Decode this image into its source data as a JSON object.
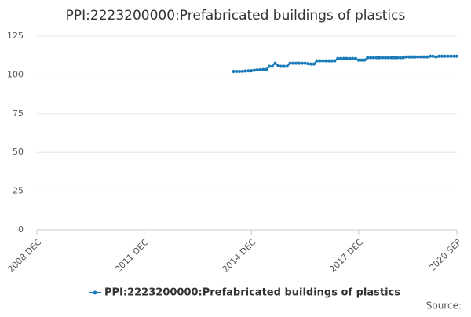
{
  "chart_data": {
    "type": "line",
    "title": "PPI:2223200000:Prefabricated buildings of plastics",
    "x": [
      "2014 JUN",
      "2014 JUL",
      "2014 AUG",
      "2014 SEP",
      "2014 OCT",
      "2014 NOV",
      "2014 DEC",
      "2015 JAN",
      "2015 FEB",
      "2015 MAR",
      "2015 APR",
      "2015 MAY",
      "2015 JUN",
      "2015 JUL",
      "2015 AUG",
      "2015 SEP",
      "2015 OCT",
      "2015 NOV",
      "2015 DEC",
      "2016 JAN",
      "2016 FEB",
      "2016 MAR",
      "2016 APR",
      "2016 MAY",
      "2016 JUN",
      "2016 JUL",
      "2016 AUG",
      "2016 SEP",
      "2016 OCT",
      "2016 NOV",
      "2016 DEC",
      "2017 JAN",
      "2017 FEB",
      "2017 MAR",
      "2017 APR",
      "2017 MAY",
      "2017 JUN",
      "2017 JUL",
      "2017 AUG",
      "2017 SEP",
      "2017 OCT",
      "2017 NOV",
      "2017 DEC",
      "2018 JAN",
      "2018 FEB",
      "2018 MAR",
      "2018 APR",
      "2018 MAY",
      "2018 JUN",
      "2018 JUL",
      "2018 AUG",
      "2018 SEP",
      "2018 OCT",
      "2018 NOV",
      "2018 DEC",
      "2019 JAN",
      "2019 FEB",
      "2019 MAR",
      "2019 APR",
      "2019 MAY",
      "2019 JUN",
      "2019 JUL",
      "2019 AUG",
      "2019 SEP",
      "2019 OCT",
      "2019 NOV",
      "2019 DEC",
      "2020 JAN",
      "2020 FEB",
      "2020 MAR",
      "2020 APR",
      "2020 MAY",
      "2020 JUN",
      "2020 JUL",
      "2020 AUG",
      "2020 SEP"
    ],
    "series": [
      {
        "name": "PPI:2223200000:Prefabricated buildings of plastics",
        "color": "#1a7bb9",
        "values": [
          102.2,
          102.2,
          102.2,
          102.3,
          102.5,
          102.6,
          102.7,
          103.0,
          103.2,
          103.3,
          103.4,
          103.5,
          105.5,
          105.5,
          107.5,
          106,
          105.5,
          105.5,
          105.5,
          107.5,
          107.5,
          107.5,
          107.5,
          107.5,
          107.5,
          107.2,
          107.0,
          107.0,
          109,
          109,
          109,
          109,
          109,
          109,
          109,
          110.5,
          110.5,
          110.5,
          110.5,
          110.5,
          110.5,
          110.5,
          109.5,
          109.5,
          109.5,
          111,
          111,
          111,
          111,
          111,
          111,
          111,
          111,
          111,
          111,
          111,
          111,
          111,
          111.5,
          111.5,
          111.5,
          111.5,
          111.5,
          111.5,
          111.5,
          111.5,
          112,
          112,
          111.5,
          112,
          112,
          112,
          112,
          112,
          112,
          112
        ]
      }
    ],
    "xlim": [
      "2008 DEC",
      "2020 SEP"
    ],
    "xticks": [
      "2008 DEC",
      "2011 DEC",
      "2014 DEC",
      "2017 DEC",
      "2020 SEP"
    ],
    "ylim": [
      0,
      125
    ],
    "yticks": [
      0,
      25,
      50,
      75,
      100,
      125
    ],
    "grid": true,
    "source": "Source:"
  }
}
